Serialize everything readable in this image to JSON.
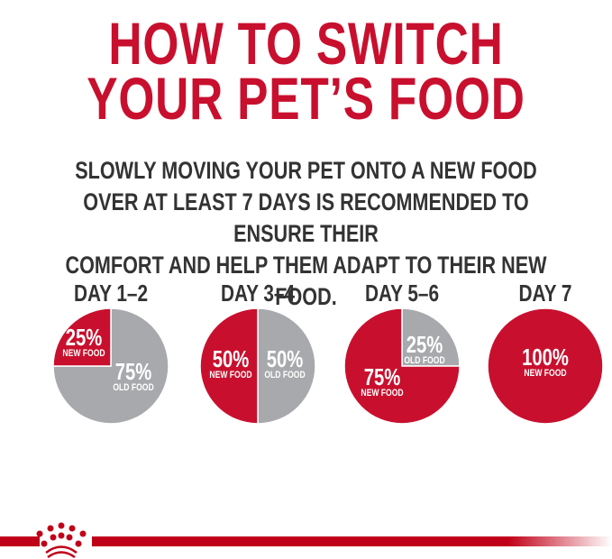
{
  "title": {
    "line1": "HOW TO SWITCH",
    "line2": "YOUR PET’S FOOD"
  },
  "subtitle": {
    "line1": "SLOWLY MOVING YOUR PET ONTO A NEW FOOD",
    "line2": "OVER AT LEAST 7 DAYS IS RECOMMENDED TO ENSURE THEIR",
    "line3": "COMFORT AND HELP THEM ADAPT TO THEIR NEW FOOD."
  },
  "colors": {
    "new_food": "#c8102e",
    "old_food": "#a7a9ac",
    "bar": "#c00018"
  },
  "logo": {
    "icon": "crown-icon"
  },
  "chart_data": [
    {
      "type": "pie",
      "title": "DAY 1–2",
      "slices": [
        {
          "label": "NEW FOOD",
          "value": 25,
          "text": "25%"
        },
        {
          "label": "OLD FOOD",
          "value": 75,
          "text": "75%"
        }
      ]
    },
    {
      "type": "pie",
      "title": "DAY 3–4",
      "slices": [
        {
          "label": "NEW FOOD",
          "value": 50,
          "text": "50%"
        },
        {
          "label": "OLD FOOD",
          "value": 50,
          "text": "50%"
        }
      ]
    },
    {
      "type": "pie",
      "title": "DAY 5–6",
      "slices": [
        {
          "label": "NEW FOOD",
          "value": 75,
          "text": "75%"
        },
        {
          "label": "OLD FOOD",
          "value": 25,
          "text": "25%"
        }
      ]
    },
    {
      "type": "pie",
      "title": "DAY 7",
      "slices": [
        {
          "label": "NEW FOOD",
          "value": 100,
          "text": "100%"
        }
      ]
    }
  ]
}
